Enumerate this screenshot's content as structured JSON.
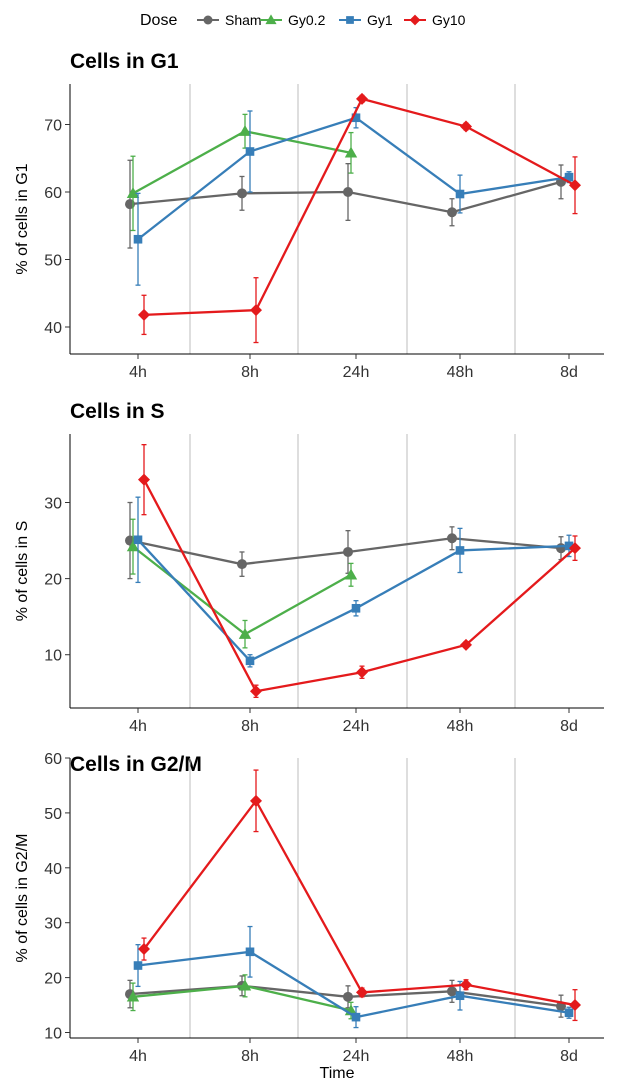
{
  "legend": {
    "title": "Dose",
    "entries": [
      {
        "name": "Sham",
        "color": "#666666",
        "marker": "circle"
      },
      {
        "name": "Gy0.2",
        "color": "#4daf4a",
        "marker": "triangle"
      },
      {
        "name": "Gy1",
        "color": "#377eb8",
        "marker": "square"
      },
      {
        "name": "Gy10",
        "color": "#e41a1c",
        "marker": "diamond"
      }
    ]
  },
  "xlabel": "Time",
  "chart_data": [
    {
      "type": "line",
      "title": "Cells in G1",
      "ylabel": "% of cells in G1",
      "categories": [
        "4h",
        "8h",
        "24h",
        "48h",
        "8d"
      ],
      "ylim": [
        36,
        76
      ],
      "yticks": [
        40,
        50,
        60,
        70
      ],
      "series": [
        {
          "name": "Sham",
          "values": [
            58.2,
            59.8,
            60.0,
            57.0,
            61.5
          ],
          "err": [
            6.5,
            2.5,
            4.2,
            2.0,
            2.5
          ]
        },
        {
          "name": "Gy0.2",
          "values": [
            59.8,
            69.0,
            65.8,
            null,
            null
          ],
          "err": [
            5.5,
            2.5,
            3.0,
            null,
            null
          ]
        },
        {
          "name": "Gy1",
          "values": [
            53.0,
            66.0,
            71.0,
            59.7,
            62.2
          ],
          "err": [
            6.8,
            6.0,
            1.5,
            2.8,
            0.8
          ]
        },
        {
          "name": "Gy10",
          "values": [
            41.8,
            42.5,
            73.8,
            69.7,
            61.0
          ],
          "err": [
            2.9,
            4.8,
            0.5,
            0.5,
            4.2
          ]
        }
      ]
    },
    {
      "type": "line",
      "title": "Cells in S",
      "ylabel": "% of cells in S",
      "categories": [
        "4h",
        "8h",
        "24h",
        "48h",
        "8d"
      ],
      "ylim": [
        3,
        39
      ],
      "yticks": [
        10,
        20,
        30
      ],
      "series": [
        {
          "name": "Sham",
          "values": [
            25.0,
            21.9,
            23.5,
            25.3,
            24.0
          ],
          "err": [
            5.0,
            1.6,
            2.8,
            1.5,
            1.5
          ]
        },
        {
          "name": "Gy0.2",
          "values": [
            24.2,
            12.7,
            20.5,
            null,
            null
          ],
          "err": [
            3.6,
            1.8,
            1.5,
            null,
            null
          ]
        },
        {
          "name": "Gy1",
          "values": [
            25.1,
            9.2,
            16.1,
            23.7,
            24.3
          ],
          "err": [
            5.6,
            0.8,
            1.0,
            2.9,
            1.4
          ]
        },
        {
          "name": "Gy10",
          "values": [
            33.0,
            5.2,
            7.7,
            11.3,
            24.0
          ],
          "err": [
            4.6,
            0.8,
            0.8,
            0.4,
            1.6
          ]
        }
      ]
    },
    {
      "type": "line",
      "title": "Cells in G2/M",
      "ylabel": "% of cells in G2/M",
      "categories": [
        "4h",
        "8h",
        "24h",
        "48h",
        "8d"
      ],
      "ylim": [
        9,
        60
      ],
      "yticks": [
        10,
        20,
        30,
        40,
        50,
        60
      ],
      "series": [
        {
          "name": "Sham",
          "values": [
            17.0,
            18.5,
            16.5,
            17.5,
            14.8
          ],
          "err": [
            2.5,
            1.8,
            2.0,
            2.0,
            2.0
          ]
        },
        {
          "name": "Gy0.2",
          "values": [
            16.5,
            18.5,
            14.0,
            null,
            null
          ],
          "err": [
            2.5,
            2.0,
            1.5,
            null,
            null
          ]
        },
        {
          "name": "Gy1",
          "values": [
            22.2,
            24.7,
            12.8,
            16.7,
            13.6
          ],
          "err": [
            3.8,
            4.6,
            1.9,
            2.6,
            1.0
          ]
        },
        {
          "name": "Gy10",
          "values": [
            25.2,
            52.2,
            17.3,
            18.7,
            15.0
          ],
          "err": [
            2.0,
            5.6,
            0.8,
            0.9,
            2.8
          ]
        }
      ]
    }
  ]
}
